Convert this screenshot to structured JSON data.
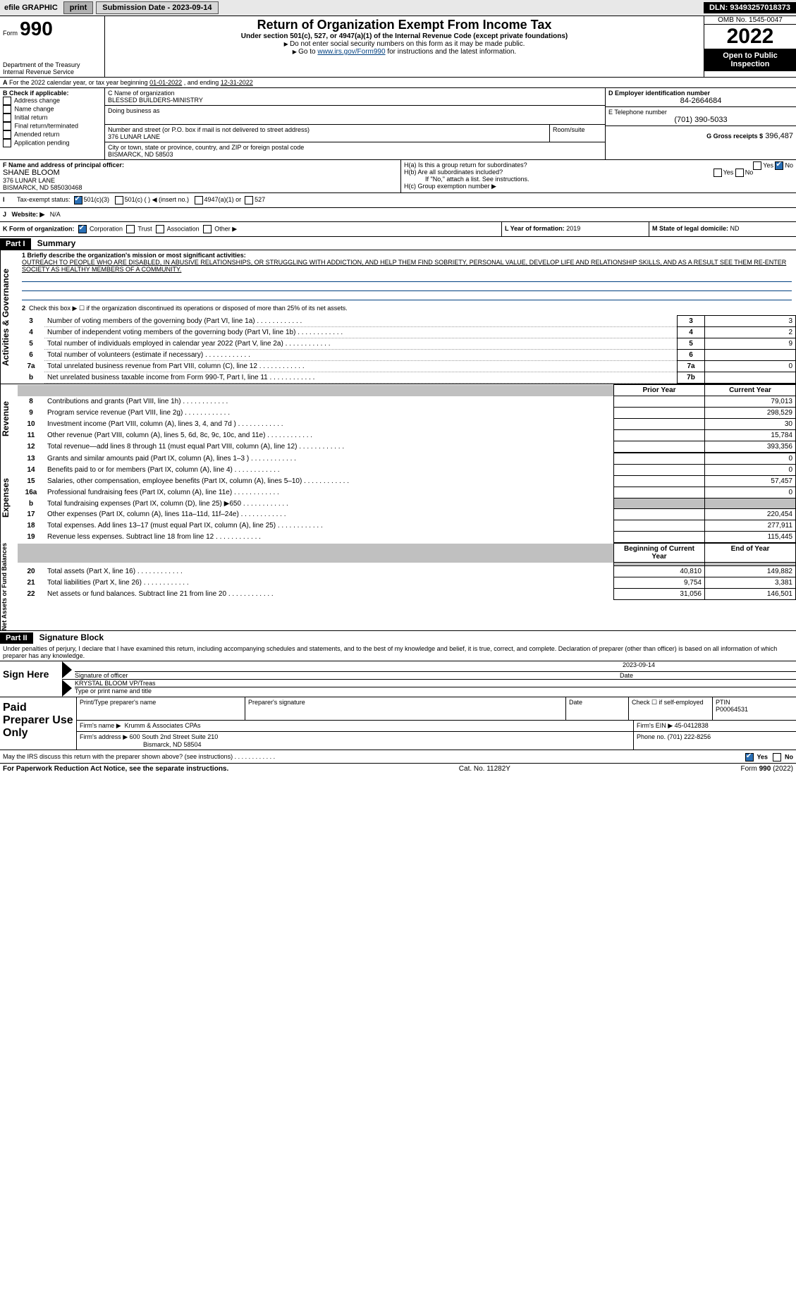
{
  "topbar": {
    "efile_label": "efile GRAPHIC",
    "print_btn": "print",
    "sub_label": "Submission Date - 2023-09-14",
    "dln": "DLN: 93493257018373"
  },
  "header": {
    "form_no_prefix": "Form",
    "form_no": "990",
    "title": "Return of Organization Exempt From Income Tax",
    "subtitle": "Under section 501(c), 527, or 4947(a)(1) of the Internal Revenue Code (except private foundations)",
    "note1": "Do not enter social security numbers on this form as it may be made public.",
    "note2_pre": "Go to ",
    "note2_link": "www.irs.gov/Form990",
    "note2_post": " for instructions and the latest information.",
    "dept": "Department of the Treasury",
    "irs": "Internal Revenue Service",
    "omb": "OMB No. 1545-0047",
    "year": "2022",
    "open_public": "Open to Public Inspection"
  },
  "line_a": {
    "text_pre": "For the 2022 calendar year, or tax year beginning ",
    "begin": "01-01-2022",
    "mid": " , and ending ",
    "end": "12-31-2022"
  },
  "block_b": {
    "label": "B Check if applicable:",
    "opts": [
      "Address change",
      "Name change",
      "Initial return",
      "Final return/terminated",
      "Amended return",
      "Application pending"
    ]
  },
  "block_c": {
    "label_name": "C Name of organization",
    "name": "BLESSED BUILDERS-MINISTRY",
    "dba_label": "Doing business as",
    "addr_label": "Number and street (or P.O. box if mail is not delivered to street address)",
    "room_label": "Room/suite",
    "addr": "376 LUNAR LANE",
    "city_label": "City or town, state or province, country, and ZIP or foreign postal code",
    "city": "BISMARCK, ND  58503"
  },
  "block_d": {
    "label": "D Employer identification number",
    "value": "84-2664684"
  },
  "block_e": {
    "label": "E Telephone number",
    "value": "(701) 390-5033"
  },
  "block_g": {
    "label": "G Gross receipts $",
    "value": "396,487"
  },
  "block_f": {
    "label": "F  Name and address of principal officer:",
    "name": "SHANE BLOOM",
    "addr1": "376 LUNAR LANE",
    "addr2": "BISMARCK, ND  585030468"
  },
  "block_h": {
    "ha_label": "H(a)  Is this a group return for subordinates?",
    "ha_yes": "Yes",
    "ha_no": "No",
    "hb_label": "H(b)  Are all subordinates included?",
    "hb_yes": "Yes",
    "hb_no": "No",
    "hb_note": "If \"No,\" attach a list. See instructions.",
    "hc_label": "H(c)  Group exemption number ▶"
  },
  "block_i": {
    "label": "Tax-exempt status:",
    "o1": "501(c)(3)",
    "o2": "501(c) (  ) ◀ (insert no.)",
    "o3": "4947(a)(1) or",
    "o4": "527"
  },
  "block_j": {
    "label": "Website: ▶",
    "value": "N/A"
  },
  "block_k": {
    "label": "K Form of organization:",
    "o1": "Corporation",
    "o2": "Trust",
    "o3": "Association",
    "o4": "Other ▶"
  },
  "block_l": {
    "label": "L Year of formation:",
    "value": "2019"
  },
  "block_m": {
    "label": "M State of legal domicile:",
    "value": "ND"
  },
  "part1": {
    "hdr": "Part I",
    "title": "Summary",
    "l1_label": "1 Briefly describe the organization's mission or most significant activities:",
    "mission": "OUTREACH TO PEOPLE WHO ARE DISABLED, IN ABUSIVE RELATIONSHIPS, OR STRUGGLING WITH ADDICTION, AND HELP THEM FIND SOBRIETY, PERSONAL VALUE, DEVELOP LIFE AND RELATIONSHIP SKILLS, AND AS A RESULT SEE THEM RE-ENTER SOCIETY AS HEALTHY MEMBERS OF A COMMUNITY.",
    "l2": "Check this box ▶ ☐ if the organization discontinued its operations or disposed of more than 25% of its net assets.",
    "rows_ag": [
      {
        "n": "3",
        "t": "Number of voting members of the governing body (Part VI, line 1a)",
        "box": "3",
        "v": "3"
      },
      {
        "n": "4",
        "t": "Number of independent voting members of the governing body (Part VI, line 1b)",
        "box": "4",
        "v": "2"
      },
      {
        "n": "5",
        "t": "Total number of individuals employed in calendar year 2022 (Part V, line 2a)",
        "box": "5",
        "v": "9"
      },
      {
        "n": "6",
        "t": "Total number of volunteers (estimate if necessary)",
        "box": "6",
        "v": ""
      },
      {
        "n": "7a",
        "t": "Total unrelated business revenue from Part VIII, column (C), line 12",
        "box": "7a",
        "v": "0"
      },
      {
        "n": "b",
        "t": "Net unrelated business taxable income from Form 990-T, Part I, line 11",
        "box": "7b",
        "v": ""
      }
    ],
    "col_prior": "Prior Year",
    "col_curr": "Current Year",
    "rows_rev": [
      {
        "n": "8",
        "t": "Contributions and grants (Part VIII, line 1h)",
        "p": "",
        "c": "79,013"
      },
      {
        "n": "9",
        "t": "Program service revenue (Part VIII, line 2g)",
        "p": "",
        "c": "298,529"
      },
      {
        "n": "10",
        "t": "Investment income (Part VIII, column (A), lines 3, 4, and 7d )",
        "p": "",
        "c": "30"
      },
      {
        "n": "11",
        "t": "Other revenue (Part VIII, column (A), lines 5, 6d, 8c, 9c, 10c, and 11e)",
        "p": "",
        "c": "15,784"
      },
      {
        "n": "12",
        "t": "Total revenue—add lines 8 through 11 (must equal Part VIII, column (A), line 12)",
        "p": "",
        "c": "393,356"
      }
    ],
    "rows_exp": [
      {
        "n": "13",
        "t": "Grants and similar amounts paid (Part IX, column (A), lines 1–3 )",
        "p": "",
        "c": "0"
      },
      {
        "n": "14",
        "t": "Benefits paid to or for members (Part IX, column (A), line 4)",
        "p": "",
        "c": "0"
      },
      {
        "n": "15",
        "t": "Salaries, other compensation, employee benefits (Part IX, column (A), lines 5–10)",
        "p": "",
        "c": "57,457"
      },
      {
        "n": "16a",
        "t": "Professional fundraising fees (Part IX, column (A), line 11e)",
        "p": "",
        "c": "0"
      },
      {
        "n": "b",
        "t": "Total fundraising expenses (Part IX, column (D), line 25) ▶650",
        "p": "grey",
        "c": "grey"
      },
      {
        "n": "17",
        "t": "Other expenses (Part IX, column (A), lines 11a–11d, 11f–24e)",
        "p": "",
        "c": "220,454"
      },
      {
        "n": "18",
        "t": "Total expenses. Add lines 13–17 (must equal Part IX, column (A), line 25)",
        "p": "",
        "c": "277,911"
      },
      {
        "n": "19",
        "t": "Revenue less expenses. Subtract line 18 from line 12",
        "p": "",
        "c": "115,445"
      }
    ],
    "col_begin": "Beginning of Current Year",
    "col_end": "End of Year",
    "rows_na": [
      {
        "n": "20",
        "t": "Total assets (Part X, line 16)",
        "p": "40,810",
        "c": "149,882"
      },
      {
        "n": "21",
        "t": "Total liabilities (Part X, line 26)",
        "p": "9,754",
        "c": "3,381"
      },
      {
        "n": "22",
        "t": "Net assets or fund balances. Subtract line 21 from line 20",
        "p": "31,056",
        "c": "146,501"
      }
    ],
    "side_ag": "Activities & Governance",
    "side_rev": "Revenue",
    "side_exp": "Expenses",
    "side_na": "Net Assets or Fund Balances"
  },
  "part2": {
    "hdr": "Part II",
    "title": "Signature Block",
    "decl": "Under penalties of perjury, I declare that I have examined this return, including accompanying schedules and statements, and to the best of my knowledge and belief, it is true, correct, and complete. Declaration of preparer (other than officer) is based on all information of which preparer has any knowledge.",
    "sign_here": "Sign Here",
    "sig_officer": "Signature of officer",
    "sig_date": "2023-09-14",
    "date_lbl": "Date",
    "officer_name": "KRYSTAL BLOOM  VP/Treas",
    "type_name": "Type or print name and title",
    "paid": "Paid Preparer Use Only",
    "prep_name_lbl": "Print/Type preparer's name",
    "prep_sig_lbl": "Preparer's signature",
    "prep_date_lbl": "Date",
    "check_self": "Check ☐ if self-employed",
    "ptin_lbl": "PTIN",
    "ptin": "P00064531",
    "firm_name_lbl": "Firm's name   ▶",
    "firm_name": "Krumm & Associates CPAs",
    "firm_ein_lbl": "Firm's EIN ▶",
    "firm_ein": "45-0412838",
    "firm_addr_lbl": "Firm's address ▶",
    "firm_addr1": "600 South 2nd Street Suite 210",
    "firm_addr2": "Bismarck, ND  58504",
    "phone_lbl": "Phone no.",
    "phone": "(701) 222-8256",
    "discuss": "May the IRS discuss this return with the preparer shown above? (see instructions)",
    "yes": "Yes",
    "no": "No"
  },
  "footer": {
    "pra": "For Paperwork Reduction Act Notice, see the separate instructions.",
    "cat": "Cat. No. 11282Y",
    "form": "Form 990 (2022)"
  }
}
